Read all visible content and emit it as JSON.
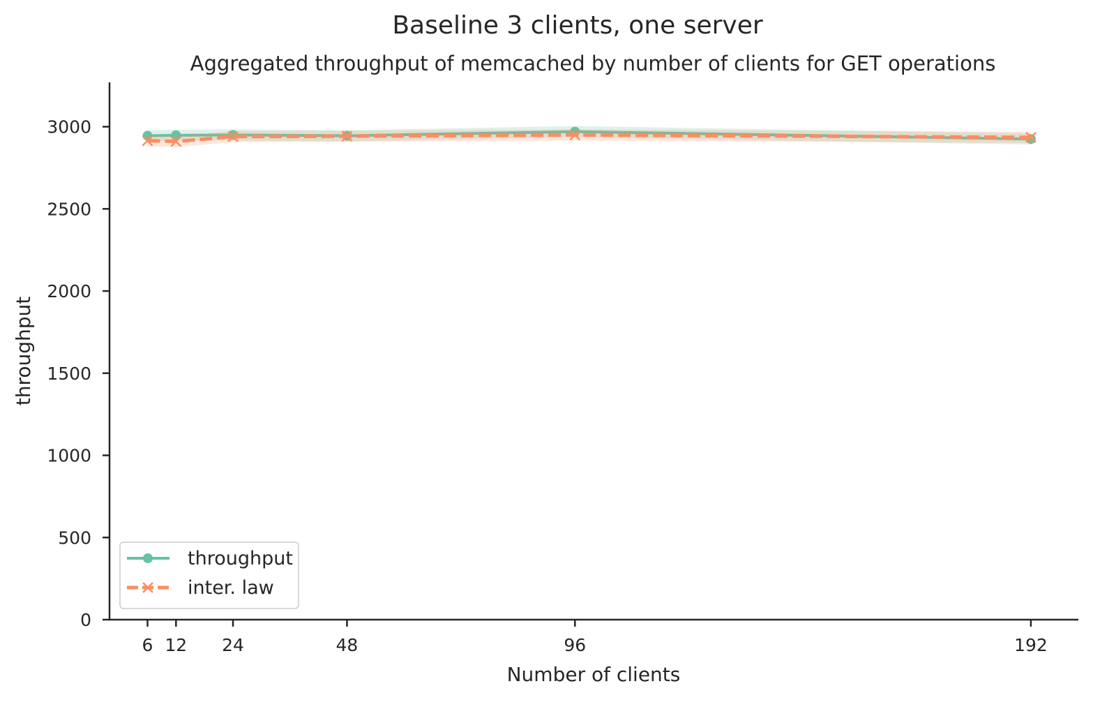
{
  "chart_data": {
    "type": "line",
    "title": "Baseline 3 clients, one server",
    "subtitle": "Aggregated throughput of memcached by number of clients for GET operations",
    "xlabel": "Number of clients",
    "ylabel": "throughput",
    "x": [
      6,
      12,
      24,
      48,
      96,
      192
    ],
    "x_ticks": [
      "6",
      "12",
      "24",
      "48",
      "96",
      "192"
    ],
    "xlim": [
      -2,
      202
    ],
    "y_ticks": [
      "0",
      "500",
      "1000",
      "1500",
      "2000",
      "2500",
      "3000"
    ],
    "ylim": [
      0,
      3270
    ],
    "grid": false,
    "legend_position": "lower-left",
    "series": [
      {
        "name": "throughput",
        "values": [
          2945,
          2948,
          2950,
          2945,
          2970,
          2925
        ],
        "color": "#66c2a5",
        "marker": "circle",
        "linestyle": "solid"
      },
      {
        "name": "inter. law",
        "values": [
          2915,
          2910,
          2940,
          2942,
          2950,
          2935
        ],
        "color": "#fc8d62",
        "marker": "x",
        "linestyle": "dashed"
      }
    ]
  }
}
